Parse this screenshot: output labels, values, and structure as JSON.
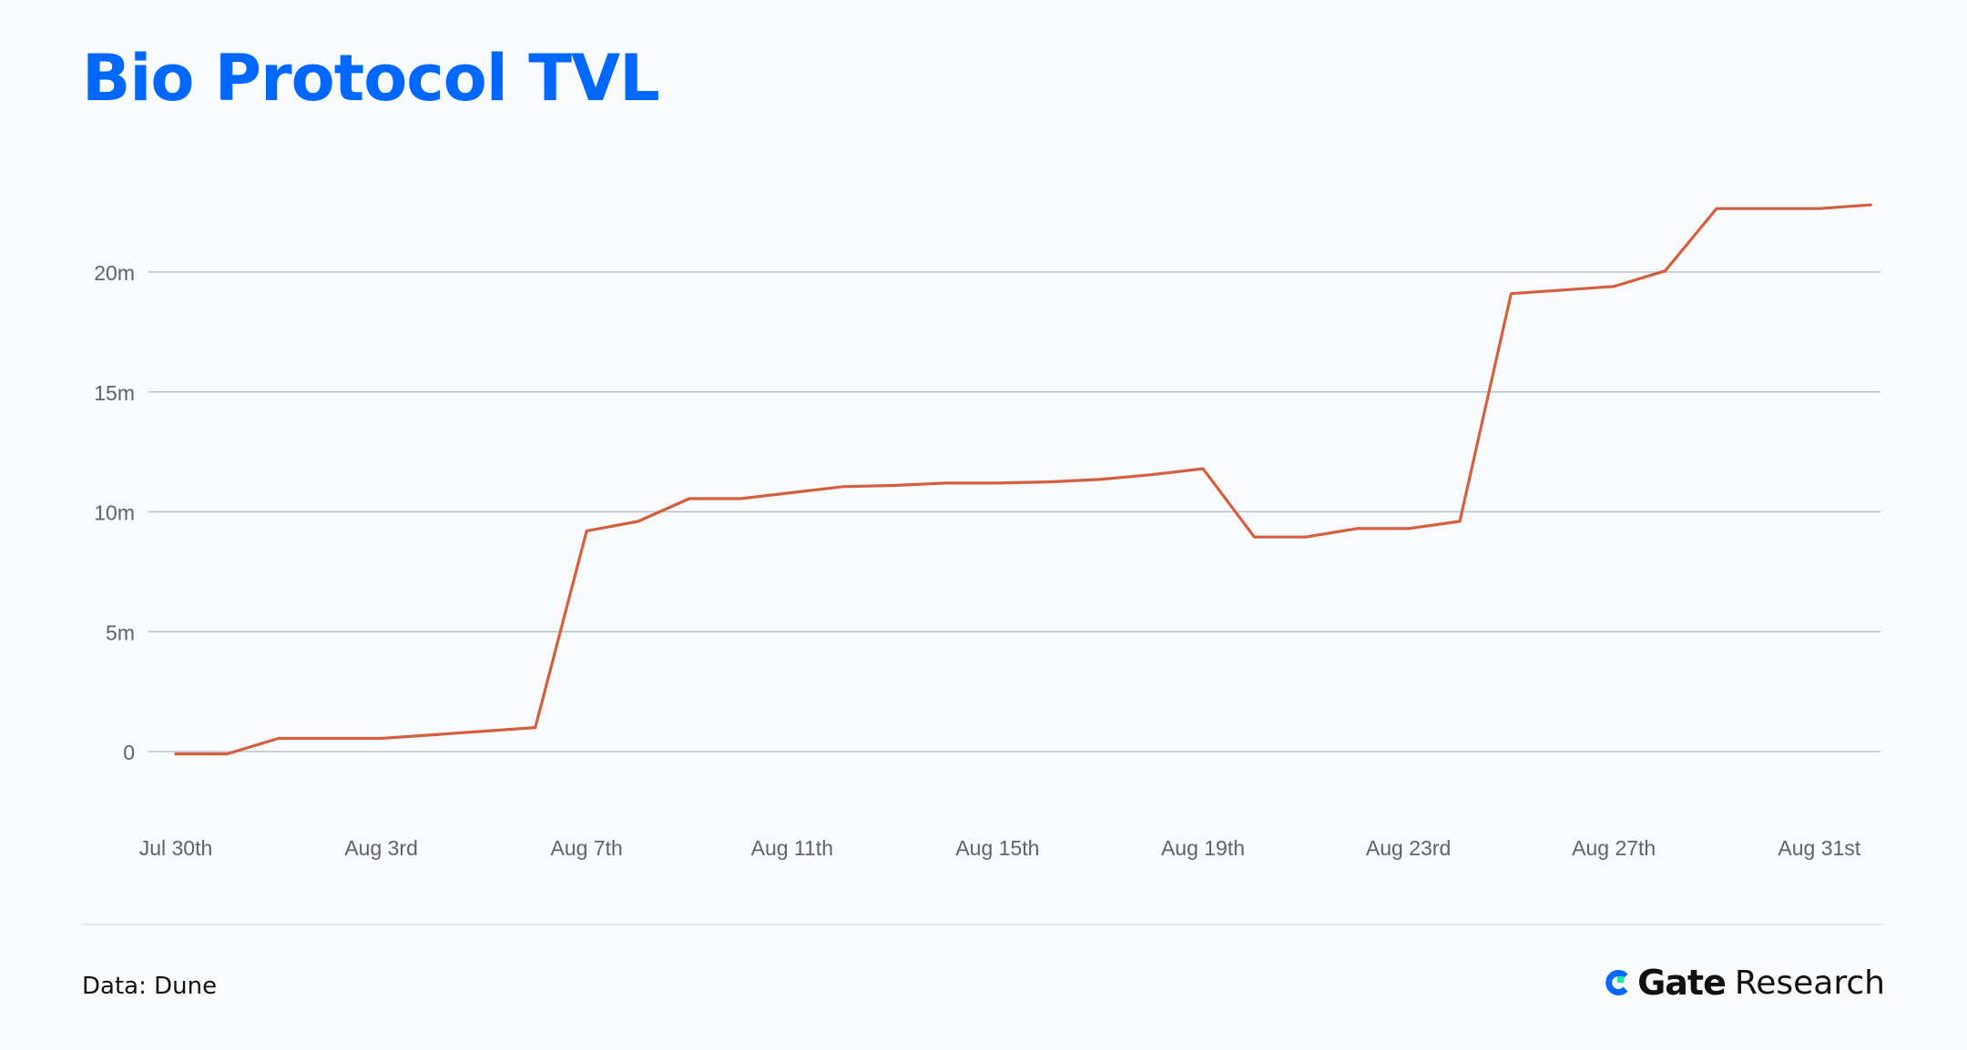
{
  "title": "Bio Protocol TVL",
  "source": "Data: Dune",
  "brand": {
    "name": "Gate",
    "suffix": "Research"
  },
  "colors": {
    "title": "#0068ff",
    "line": "#d45f3e",
    "grid": "#bcbfc5",
    "axis_text": "#5f6368",
    "background": "#f8fafc",
    "brand_blue": "#0068ff",
    "brand_green": "#17e6a1"
  },
  "chart_data": {
    "type": "line",
    "title": "Bio Protocol TVL",
    "xlabel": "",
    "ylabel": "",
    "grid": true,
    "legend": "none",
    "ylim": [
      -2.5,
      22.5
    ],
    "yticks": [
      0,
      5,
      10,
      15,
      20
    ],
    "ytick_labels": [
      "0",
      "5m",
      "10m",
      "15m",
      "20m"
    ],
    "xticks": [
      "Jul 30th",
      "Aug 3rd",
      "Aug 7th",
      "Aug 11th",
      "Aug 15th",
      "Aug 19th",
      "Aug 23rd",
      "Aug 27th",
      "Aug 31st"
    ],
    "series": [
      {
        "name": "",
        "x": [
          "Jul 30th",
          "Jul 31st",
          "Aug 1st",
          "Aug 2nd",
          "Aug 3rd",
          "Aug 4th",
          "Aug 5th",
          "Aug 6th",
          "Aug 7th",
          "Aug 8th",
          "Aug 9th",
          "Aug 10th",
          "Aug 11th",
          "Aug 12th",
          "Aug 13th",
          "Aug 14th",
          "Aug 15th",
          "Aug 16th",
          "Aug 17th",
          "Aug 18th",
          "Aug 19th",
          "Aug 20th",
          "Aug 21st",
          "Aug 22nd",
          "Aug 23rd",
          "Aug 24th",
          "Aug 25th",
          "Aug 26th",
          "Aug 27th",
          "Aug 28th",
          "Aug 29th",
          "Aug 30th",
          "Aug 31st",
          "Sep 1st"
        ],
        "values": [
          -0.1,
          -0.1,
          0.55,
          0.55,
          0.55,
          0.7,
          0.85,
          1.0,
          9.2,
          9.6,
          10.55,
          10.55,
          10.8,
          11.05,
          11.1,
          11.2,
          11.2,
          11.25,
          11.35,
          11.55,
          11.8,
          8.95,
          8.95,
          9.3,
          9.3,
          9.6,
          19.1,
          19.25,
          19.4,
          20.05,
          22.65,
          22.65,
          22.65,
          22.8
        ]
      }
    ]
  }
}
